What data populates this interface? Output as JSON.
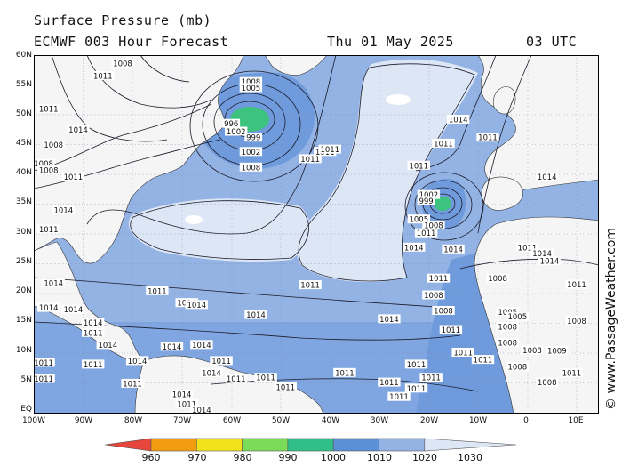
{
  "header": {
    "title": "Surface Pressure (mb)",
    "model": "ECMWF 003 Hour Forecast",
    "date": "Thu 01 May 2025",
    "time": "03 UTC"
  },
  "watermark": "© www.PassageWeather.com",
  "latitude_labels": [
    "60N",
    "55N",
    "50N",
    "45N",
    "40N",
    "35N",
    "30N",
    "25N",
    "20N",
    "15N",
    "10N",
    "5N",
    "EQ"
  ],
  "longitude_labels": [
    "100W",
    "90W",
    "80W",
    "70W",
    "60W",
    "50W",
    "40W",
    "30W",
    "20W",
    "10W",
    "0",
    "10E"
  ],
  "colorbar": {
    "labels": [
      "960",
      "970",
      "980",
      "990",
      "1000",
      "1010",
      "1020",
      "1030"
    ],
    "colors": [
      "#e8453c",
      "#f39c12",
      "#f1e21b",
      "#7bdc5a",
      "#2fbf87",
      "#5b8fd6",
      "#93b3e4",
      "#dde6f5"
    ]
  },
  "map_colors": {
    "ocean_low": "#6f9bdc",
    "ocean_mid": "#93b3e4",
    "ocean_high": "#dde6f5",
    "low_center": "#3cc37e",
    "land": "#f5f5f5",
    "isobar": "#1a1a2a"
  },
  "pressure_labels": [
    {
      "text": "1008",
      "lon": -82,
      "lat": 58.6
    },
    {
      "text": "1011",
      "lon": -86,
      "lat": 56.5
    },
    {
      "text": "1011",
      "lon": -97,
      "lat": 51
    },
    {
      "text": "1014",
      "lon": -91,
      "lat": 47.5
    },
    {
      "text": "1008",
      "lon": -96,
      "lat": 45
    },
    {
      "text": "1008",
      "lon": -98,
      "lat": 41.8
    },
    {
      "text": "1008",
      "lon": -97,
      "lat": 40.7
    },
    {
      "text": "1011",
      "lon": -92,
      "lat": 39.6
    },
    {
      "text": "1014",
      "lon": -94,
      "lat": 34
    },
    {
      "text": "1011",
      "lon": -97,
      "lat": 30.8
    },
    {
      "text": "1008",
      "lon": -56,
      "lat": 55.5
    },
    {
      "text": "1005",
      "lon": -56,
      "lat": 54.5
    },
    {
      "text": "996",
      "lon": -60,
      "lat": 48.5
    },
    {
      "text": "1002",
      "lon": -59,
      "lat": 47.2
    },
    {
      "text": "999",
      "lon": -55.5,
      "lat": 46.2
    },
    {
      "text": "1002",
      "lon": -56,
      "lat": 43.8
    },
    {
      "text": "1008",
      "lon": -56,
      "lat": 41.2
    },
    {
      "text": "1011",
      "lon": -44,
      "lat": 42.6
    },
    {
      "text": "1011",
      "lon": -41,
      "lat": 43.8
    },
    {
      "text": "1011",
      "lon": -40,
      "lat": 44.2
    },
    {
      "text": "1011",
      "lon": -17,
      "lat": 45.2
    },
    {
      "text": "1014",
      "lon": -14,
      "lat": 49.2
    },
    {
      "text": "1011",
      "lon": -22,
      "lat": 41.5
    },
    {
      "text": "1011",
      "lon": -8,
      "lat": 46.2
    },
    {
      "text": "1014",
      "lon": 4,
      "lat": 39.6
    },
    {
      "text": "1002",
      "lon": -20,
      "lat": 36.6
    },
    {
      "text": "999",
      "lon": -20.5,
      "lat": 35.6
    },
    {
      "text": "1005",
      "lon": -22,
      "lat": 32.5
    },
    {
      "text": "1008",
      "lon": -19,
      "lat": 31.5
    },
    {
      "text": "1011",
      "lon": -20.5,
      "lat": 30.2
    },
    {
      "text": "1014",
      "lon": -23,
      "lat": 27.8
    },
    {
      "text": "1014",
      "lon": -15,
      "lat": 27.5
    },
    {
      "text": "1011",
      "lon": 0,
      "lat": 27.8
    },
    {
      "text": "1014",
      "lon": 3,
      "lat": 26.8
    },
    {
      "text": "1014",
      "lon": 4.5,
      "lat": 25.5
    },
    {
      "text": "1011",
      "lon": -18,
      "lat": 22.6
    },
    {
      "text": "1008",
      "lon": -6,
      "lat": 22.6
    },
    {
      "text": "1011",
      "lon": 10,
      "lat": 21.6
    },
    {
      "text": "1008",
      "lon": -19,
      "lat": 19.8
    },
    {
      "text": "1008",
      "lon": -17,
      "lat": 17.2
    },
    {
      "text": "1005",
      "lon": -4,
      "lat": 17
    },
    {
      "text": "1005",
      "lon": -2,
      "lat": 16.2
    },
    {
      "text": "1008",
      "lon": -4,
      "lat": 14.5
    },
    {
      "text": "1008",
      "lon": 10,
      "lat": 15.5
    },
    {
      "text": "1011",
      "lon": -15.5,
      "lat": 14
    },
    {
      "text": "1008",
      "lon": -4,
      "lat": 11.8
    },
    {
      "text": "1008",
      "lon": 1,
      "lat": 10.6
    },
    {
      "text": "1009",
      "lon": 6,
      "lat": 10.5
    },
    {
      "text": "1011",
      "lon": -13,
      "lat": 10.2
    },
    {
      "text": "1011",
      "lon": -9,
      "lat": 9
    },
    {
      "text": "1011",
      "lon": -22.5,
      "lat": 8.2
    },
    {
      "text": "1011",
      "lon": -19.5,
      "lat": 6
    },
    {
      "text": "1008",
      "lon": -2,
      "lat": 7.8
    },
    {
      "text": "1008",
      "lon": 4,
      "lat": 5.2
    },
    {
      "text": "1011",
      "lon": 9,
      "lat": 6.8
    },
    {
      "text": "1011",
      "lon": -44,
      "lat": 21.5
    },
    {
      "text": "1014",
      "lon": -55,
      "lat": 16.5
    },
    {
      "text": "1014",
      "lon": -28,
      "lat": 15.8
    },
    {
      "text": "1011",
      "lon": -75,
      "lat": 20.5
    },
    {
      "text": "1014",
      "lon": -69,
      "lat": 18.5
    },
    {
      "text": "1014",
      "lon": -67,
      "lat": 18.2
    },
    {
      "text": "1014",
      "lon": -96,
      "lat": 21.8
    },
    {
      "text": "1014",
      "lon": -97,
      "lat": 17.7
    },
    {
      "text": "1014",
      "lon": -92,
      "lat": 17.4
    },
    {
      "text": "1014",
      "lon": -88,
      "lat": 15.2
    },
    {
      "text": "1011",
      "lon": -88,
      "lat": 13.5
    },
    {
      "text": "1014",
      "lon": -85,
      "lat": 11.5
    },
    {
      "text": "1014",
      "lon": -79,
      "lat": 8.8
    },
    {
      "text": "1011",
      "lon": -88,
      "lat": 8.2
    },
    {
      "text": "1011",
      "lon": -98,
      "lat": 8.5
    },
    {
      "text": "1014",
      "lon": -72,
      "lat": 11.2
    },
    {
      "text": "1014",
      "lon": -66,
      "lat": 11.5
    },
    {
      "text": "1011",
      "lon": -62,
      "lat": 8.8
    },
    {
      "text": "1014",
      "lon": -64,
      "lat": 6.8
    },
    {
      "text": "1011",
      "lon": -59,
      "lat": 5.8
    },
    {
      "text": "1011",
      "lon": -53,
      "lat": 6
    },
    {
      "text": "1011",
      "lon": -49,
      "lat": 4.4
    },
    {
      "text": "1011",
      "lon": -37,
      "lat": 6.8
    },
    {
      "text": "1011",
      "lon": -28,
      "lat": 5.2
    },
    {
      "text": "1011",
      "lon": -26,
      "lat": 2.8
    },
    {
      "text": "1011",
      "lon": -22.5,
      "lat": 4.2
    },
    {
      "text": "1011",
      "lon": -80,
      "lat": 5
    },
    {
      "text": "1014",
      "lon": -70,
      "lat": 3.2
    },
    {
      "text": "1011",
      "lon": -69,
      "lat": 1.6
    },
    {
      "text": "1014",
      "lon": -66,
      "lat": 0.6
    },
    {
      "text": "1011",
      "lon": -98,
      "lat": 5.8
    }
  ]
}
